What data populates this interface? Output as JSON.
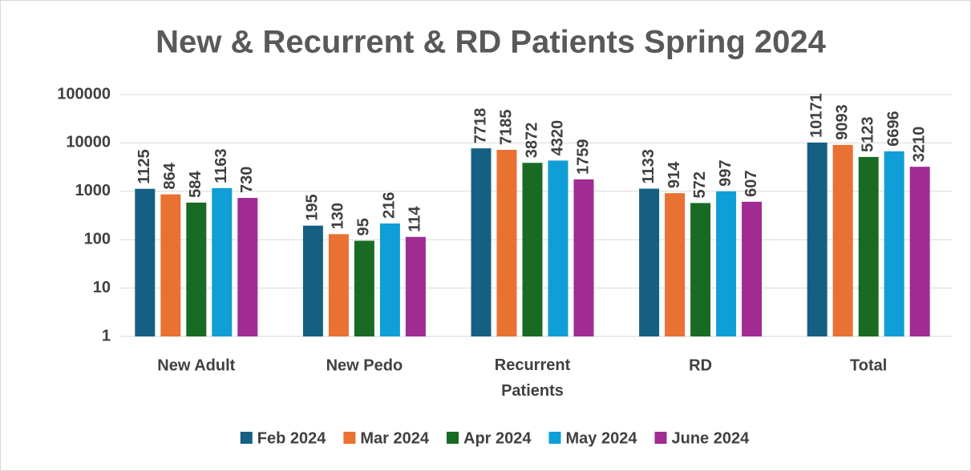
{
  "chart_data": {
    "type": "bar",
    "title": "New & Recurrent & RD Patients Spring 2024",
    "categories": [
      "New Adult",
      "New Pedo",
      "Recurrent Patients",
      "RD",
      "Total"
    ],
    "series": [
      {
        "name": "Feb 2024",
        "color": "#156082",
        "values": [
          1125,
          195,
          7718,
          1133,
          10171
        ]
      },
      {
        "name": "Mar 2024",
        "color": "#e97132",
        "values": [
          864,
          130,
          7185,
          914,
          9093
        ]
      },
      {
        "name": "Apr 2024",
        "color": "#196b24",
        "values": [
          584,
          95,
          3872,
          572,
          5123
        ]
      },
      {
        "name": "May 2024",
        "color": "#0f9ed5",
        "values": [
          1163,
          216,
          4320,
          997,
          6696
        ]
      },
      {
        "name": "June 2024",
        "color": "#a02b93",
        "values": [
          730,
          114,
          1759,
          607,
          3210
        ]
      }
    ],
    "ylim": [
      1,
      100000
    ],
    "yticks": [
      1,
      10,
      100,
      1000,
      10000,
      100000
    ],
    "log_scale": true,
    "grid": true,
    "legend": "bottom"
  }
}
